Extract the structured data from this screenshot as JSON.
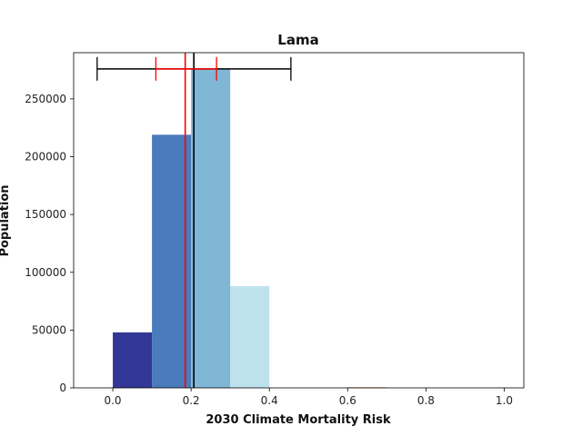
{
  "chart_data": {
    "type": "bar",
    "title": "Lama",
    "xlabel": "2030 Climate Mortality Risk",
    "ylabel": "Population",
    "xlim": [
      -0.1,
      1.05
    ],
    "ylim": [
      0,
      290000
    ],
    "xticks": [
      0.0,
      0.2,
      0.4,
      0.6,
      0.8,
      1.0
    ],
    "xtick_labels": [
      "0.0",
      "0.2",
      "0.4",
      "0.6",
      "0.8",
      "1.0"
    ],
    "yticks": [
      0,
      50000,
      100000,
      150000,
      200000,
      250000
    ],
    "ytick_labels": [
      "0",
      "50000",
      "100000",
      "150000",
      "200000",
      "250000"
    ],
    "grid": false,
    "bins": [
      {
        "x0": 0.0,
        "x1": 0.1,
        "value": 48000,
        "color": "#333797"
      },
      {
        "x0": 0.1,
        "x1": 0.2,
        "value": 219000,
        "color": "#4a7bbc"
      },
      {
        "x0": 0.2,
        "x1": 0.3,
        "value": 276000,
        "color": "#80b7d7"
      },
      {
        "x0": 0.3,
        "x1": 0.4,
        "value": 88000,
        "color": "#bde2ee"
      },
      {
        "x0": 0.4,
        "x1": 0.5,
        "value": 0,
        "color": "#ffffff"
      },
      {
        "x0": 0.5,
        "x1": 0.6,
        "value": 0,
        "color": "#ffffff"
      },
      {
        "x0": 0.6,
        "x1": 0.7,
        "value": 600,
        "color": "#f4a460"
      }
    ],
    "reference_lines": [
      {
        "x": 0.185,
        "color": "#ff0000"
      },
      {
        "x": 0.207,
        "color": "#000000"
      }
    ],
    "error_bars": [
      {
        "y": 276000,
        "low": -0.04,
        "high": 0.455,
        "color": "#000000"
      },
      {
        "y": 276000,
        "low": 0.11,
        "high": 0.265,
        "color": "#ff0000"
      }
    ]
  }
}
